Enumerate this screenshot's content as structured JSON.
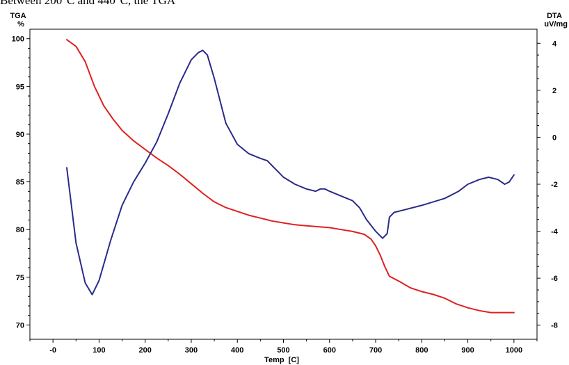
{
  "caption_fragment": "Between 200°C and 440°C, the TGA",
  "chart_data": {
    "type": "line",
    "xlabel": "Temp  [C]",
    "xlim": [
      -50,
      1050
    ],
    "x_ticks": [
      "-0",
      "100",
      "200",
      "300",
      "400",
      "500",
      "600",
      "700",
      "800",
      "900",
      "1000"
    ],
    "left_axis": {
      "label_top": "TGA",
      "label_unit": "%",
      "ylim": [
        68.5,
        101
      ],
      "ticks": [
        "70",
        "75",
        "80",
        "85",
        "90",
        "95",
        "100"
      ]
    },
    "right_axis": {
      "label_top": "DTA",
      "label_unit": "uV/mg",
      "ylim": [
        -8.6,
        4.6
      ],
      "ticks": [
        "-8",
        "-6",
        "-4",
        "-2",
        "0",
        "2",
        "4"
      ]
    },
    "series": [
      {
        "axis": "left",
        "color": "#e02020",
        "x": [
          30,
          50,
          70,
          90,
          110,
          130,
          150,
          175,
          200,
          225,
          250,
          275,
          300,
          325,
          350,
          375,
          400,
          425,
          450,
          475,
          500,
          525,
          550,
          575,
          600,
          625,
          650,
          675,
          690,
          700,
          710,
          720,
          730,
          750,
          775,
          800,
          825,
          850,
          875,
          900,
          925,
          950,
          975,
          1000
        ],
        "y": [
          99.9,
          99.2,
          97.6,
          95.0,
          93.0,
          91.6,
          90.4,
          89.3,
          88.4,
          87.5,
          86.7,
          85.8,
          84.8,
          83.8,
          82.9,
          82.3,
          81.9,
          81.5,
          81.2,
          80.9,
          80.7,
          80.5,
          80.4,
          80.3,
          80.2,
          80.0,
          79.8,
          79.5,
          79.0,
          78.3,
          77.3,
          76.1,
          75.1,
          74.6,
          73.9,
          73.5,
          73.2,
          72.8,
          72.2,
          71.8,
          71.5,
          71.3,
          71.3,
          71.3
        ]
      },
      {
        "axis": "right",
        "color": "#2a2a8a",
        "x": [
          30,
          50,
          70,
          85,
          100,
          125,
          150,
          175,
          200,
          225,
          250,
          275,
          300,
          315,
          325,
          335,
          350,
          375,
          400,
          425,
          450,
          465,
          475,
          490,
          500,
          525,
          550,
          570,
          580,
          590,
          600,
          625,
          650,
          665,
          680,
          700,
          715,
          725,
          730,
          740,
          760,
          800,
          850,
          880,
          900,
          925,
          945,
          965,
          980,
          990,
          1000
        ],
        "y": [
          -1.3,
          -4.5,
          -6.2,
          -6.7,
          -6.1,
          -4.4,
          -2.9,
          -1.9,
          -1.1,
          -0.2,
          1.0,
          2.3,
          3.3,
          3.6,
          3.7,
          3.5,
          2.5,
          0.6,
          -0.3,
          -0.7,
          -0.9,
          -1.0,
          -1.2,
          -1.5,
          -1.7,
          -2.0,
          -2.2,
          -2.3,
          -2.2,
          -2.2,
          -2.3,
          -2.5,
          -2.7,
          -3.0,
          -3.5,
          -4.0,
          -4.3,
          -4.1,
          -3.4,
          -3.2,
          -3.1,
          -2.9,
          -2.6,
          -2.3,
          -2.0,
          -1.8,
          -1.7,
          -1.8,
          -2.0,
          -1.9,
          -1.6
        ]
      }
    ]
  }
}
